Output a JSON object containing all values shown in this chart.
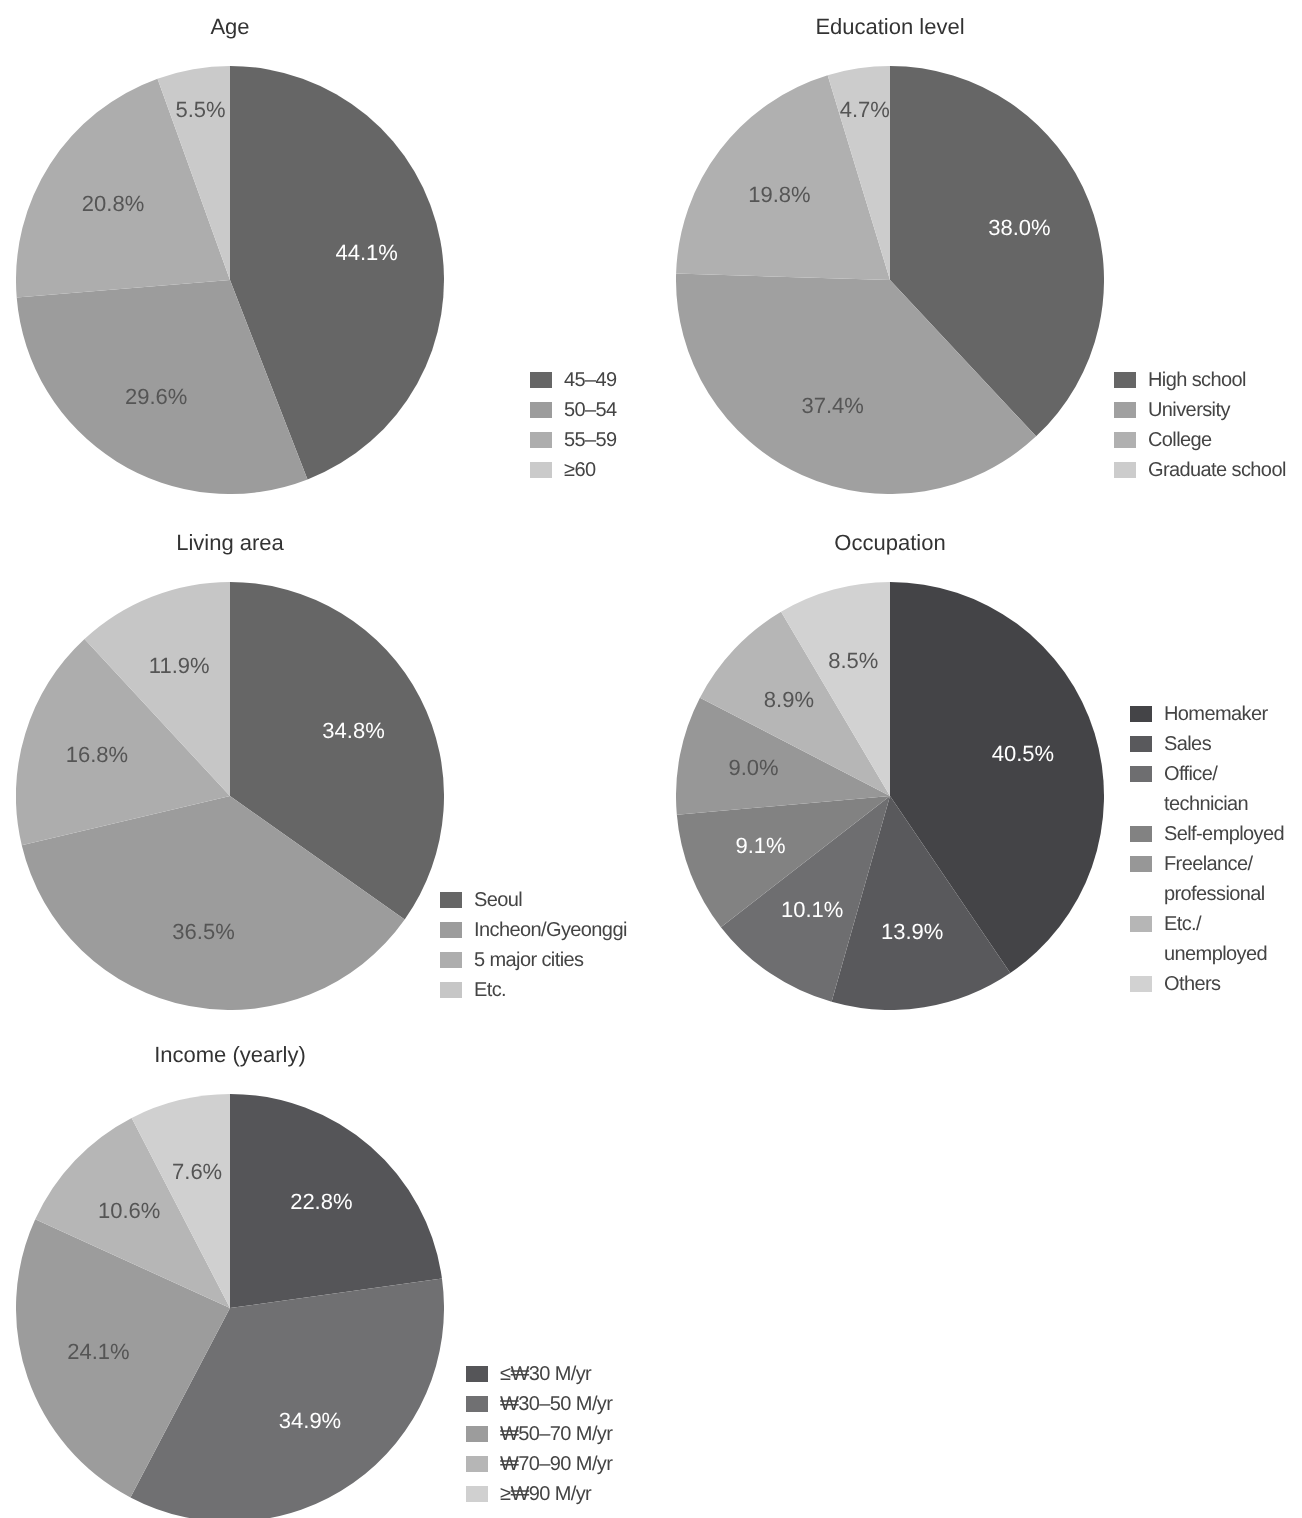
{
  "chart_data": [
    {
      "type": "pie",
      "title": "Age",
      "categories": [
        "45–49",
        "50–54",
        "55–59",
        "≥60"
      ],
      "values": [
        44.1,
        29.6,
        20.8,
        5.5
      ],
      "value_labels": [
        "44.1%",
        "29.6%",
        "20.8%",
        "5.5%"
      ],
      "colors": [
        "#666666",
        "#9c9c9c",
        "#adadad",
        "#cacaca"
      ],
      "legend": "bottom right"
    },
    {
      "type": "pie",
      "title": "Education level",
      "categories": [
        "High school",
        "University",
        "College",
        "Graduate school"
      ],
      "values": [
        38.0,
        37.4,
        19.8,
        4.7
      ],
      "value_labels": [
        "38.0%",
        "37.4%",
        "19.8%",
        "4.7%"
      ],
      "colors": [
        "#666666",
        "#a0a0a0",
        "#b0b0b0",
        "#cccccc"
      ],
      "legend": "bottom right"
    },
    {
      "type": "pie",
      "title": "Living area",
      "categories": [
        "Seoul",
        "Incheon/Gyeonggi",
        "5 major cities",
        "Etc."
      ],
      "values": [
        34.8,
        36.5,
        16.8,
        11.9
      ],
      "value_labels": [
        "34.8%",
        "36.5%",
        "16.8%",
        "11.9%"
      ],
      "colors": [
        "#666666",
        "#9c9c9c",
        "#adadad",
        "#c6c6c6"
      ],
      "legend": "bottom right"
    },
    {
      "type": "pie",
      "title": "Occupation",
      "categories": [
        "Homemaker",
        "Sales",
        "Office/ technician",
        "Self-employed",
        "Freelance/ professional",
        "Etc./ unemployed",
        "Others"
      ],
      "values": [
        40.5,
        13.9,
        10.1,
        9.1,
        9.0,
        8.9,
        8.5
      ],
      "value_labels": [
        "40.5%",
        "13.9%",
        "10.1%",
        "9.1%",
        "9.0%",
        "8.9%",
        "8.5%"
      ],
      "colors": [
        "#444447",
        "#59595c",
        "#6e6e70",
        "#828282",
        "#979797",
        "#b6b6b6",
        "#d2d2d2"
      ],
      "legend": "right"
    },
    {
      "type": "pie",
      "title": "Income (yearly)",
      "categories": [
        "≤₩30 M/yr",
        "₩30–50 M/yr",
        "₩50–70 M/yr",
        "₩70–90 M/yr",
        "≥₩90 M/yr"
      ],
      "values": [
        22.8,
        34.9,
        24.1,
        10.6,
        7.6
      ],
      "value_labels": [
        "22.8%",
        "34.9%",
        "24.1%",
        "10.6%",
        "7.6%"
      ],
      "colors": [
        "#555558",
        "#707072",
        "#9c9c9c",
        "#b6b6b6",
        "#d0d0d0"
      ],
      "legend": "bottom right"
    }
  ]
}
